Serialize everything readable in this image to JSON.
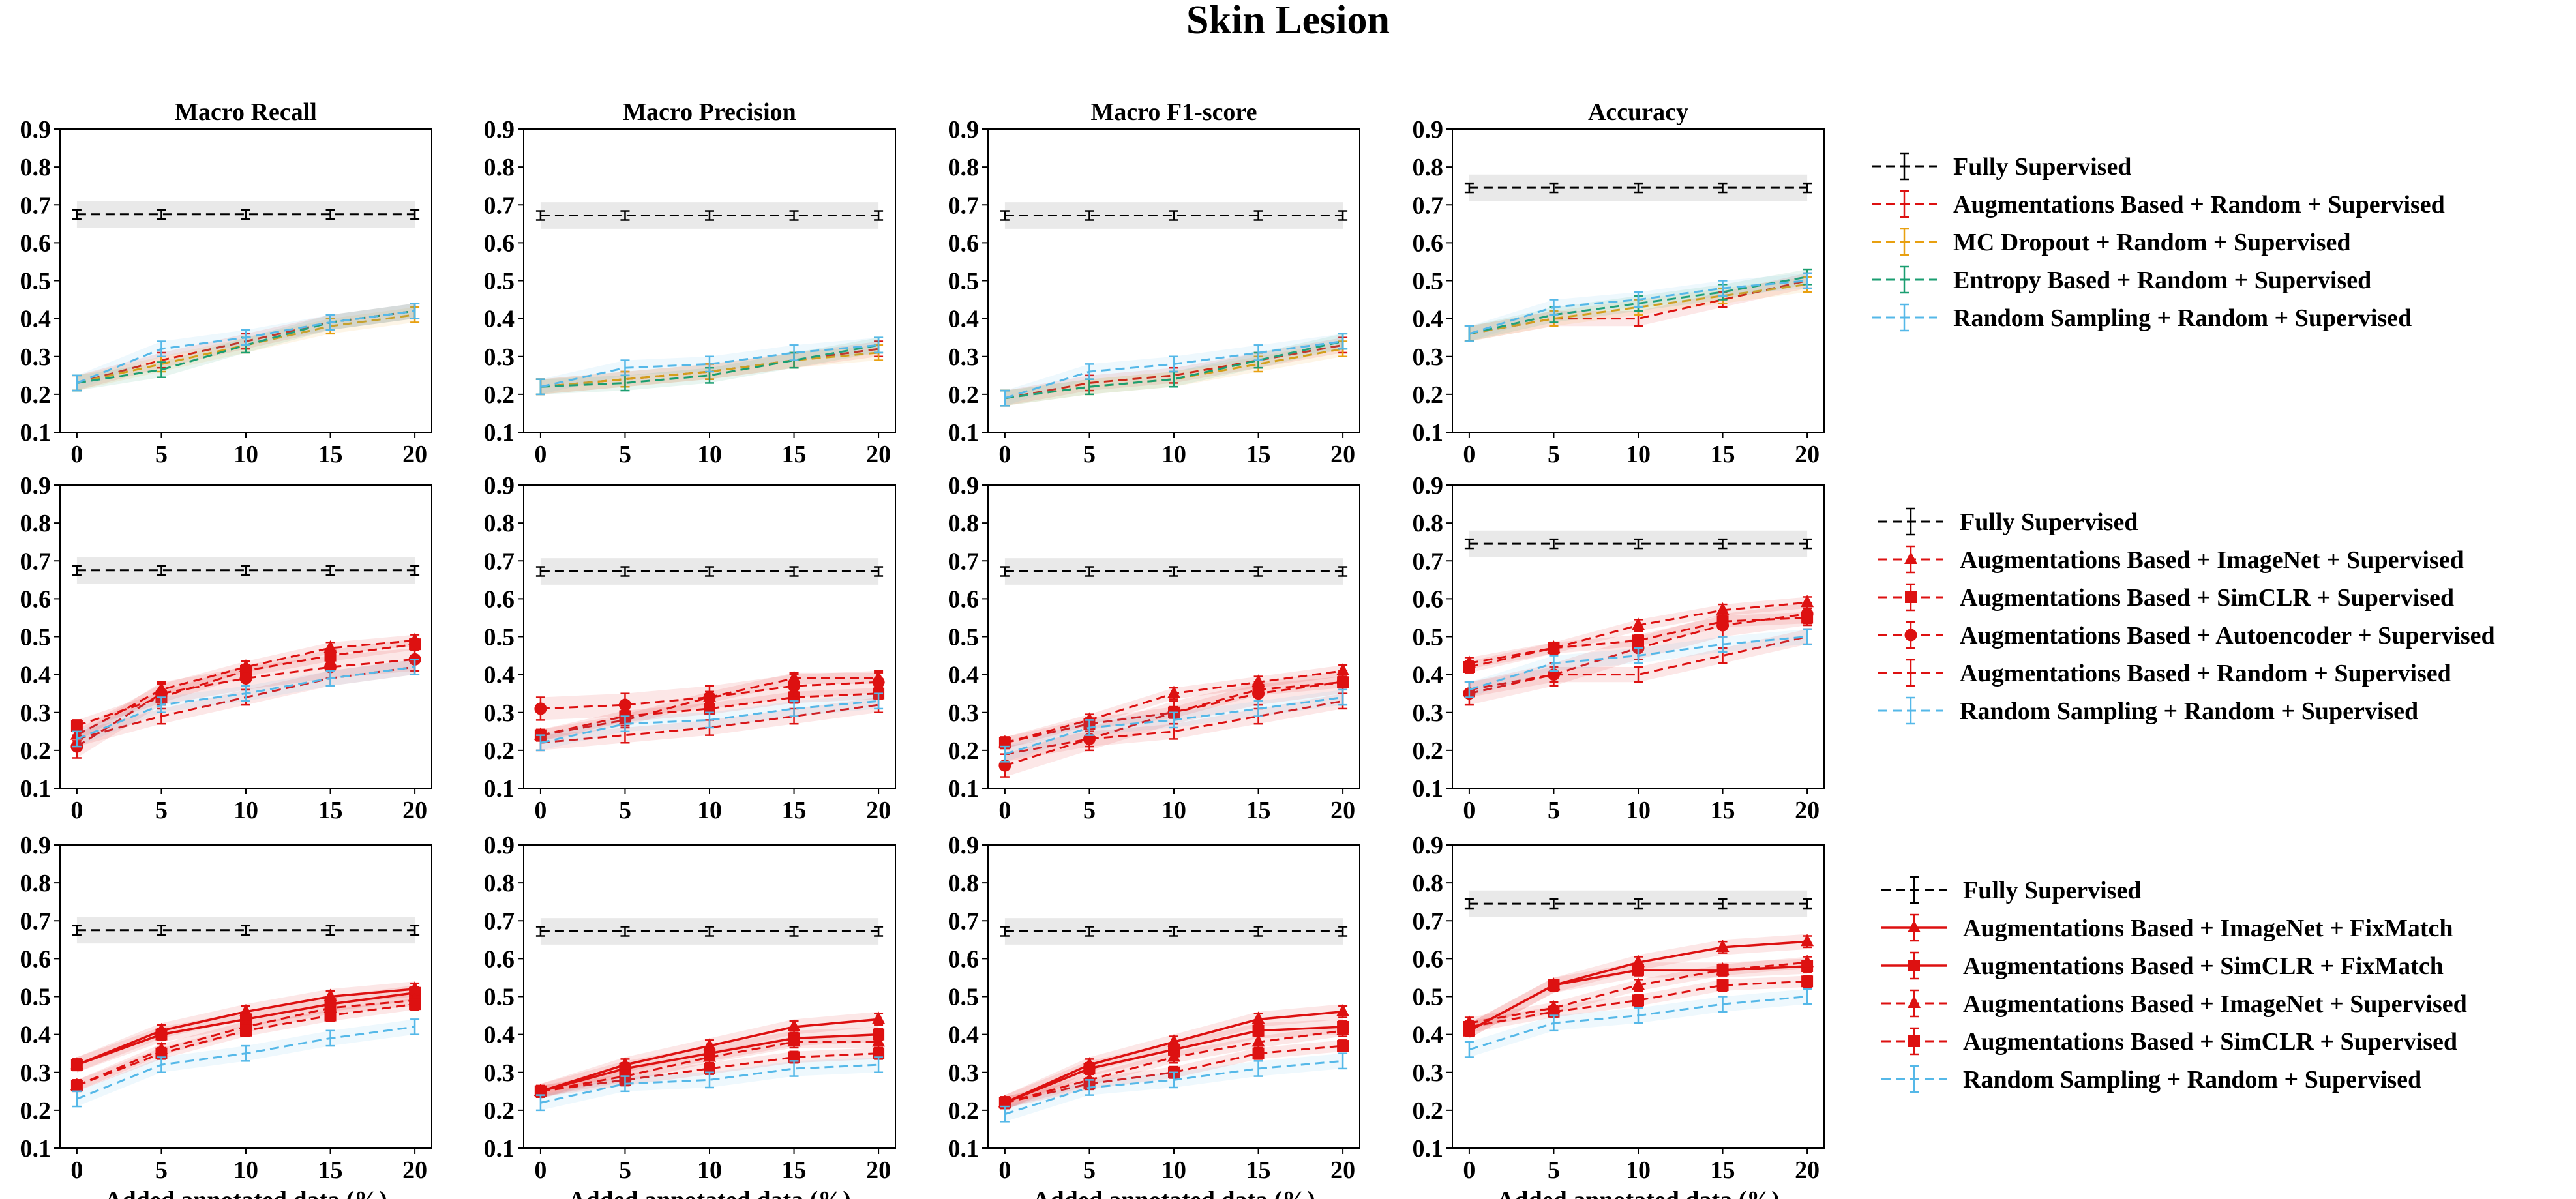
{
  "figure": {
    "title": "Skin Lesion",
    "panel_titles": [
      "Macro Recall",
      "Macro Precision",
      "Macro F1-score",
      "Accuracy"
    ],
    "xlabel": "Added annotated data (%)",
    "x": [
      0,
      5,
      10,
      15,
      20
    ],
    "ylim": [
      0.1,
      0.9
    ],
    "yticks": [
      "0.1",
      "0.2",
      "0.3",
      "0.4",
      "0.5",
      "0.6",
      "0.7",
      "0.8",
      "0.9"
    ],
    "xticks": [
      "0",
      "5",
      "10",
      "15",
      "20"
    ],
    "colors": {
      "fully": "#000000",
      "red": "#dd1111",
      "orange": "#e8a010",
      "green": "#1a9e70",
      "blue": "#55b8e8"
    }
  },
  "legends": [
    [
      "Fully Supervised",
      "Augmentations Based +  Random + Supervised",
      "MC Dropout +  Random + Supervised",
      "Entropy Based +  Random + Supervised",
      "Random Sampling +  Random + Supervised"
    ],
    [
      "Fully Supervised",
      "Augmentations Based + ImageNet + Supervised",
      "Augmentations Based + SimCLR + Supervised",
      "Augmentations Based + Autoencoder + Supervised",
      "Augmentations Based +  Random + Supervised",
      "Random Sampling +  Random + Supervised"
    ],
    [
      "Fully Supervised",
      "Augmentations Based + ImageNet + FixMatch",
      "Augmentations Based + SimCLR + FixMatch",
      "Augmentations Based + ImageNet + Supervised",
      "Augmentations Based + SimCLR + Supervised",
      "Random Sampling +  Random + Supervised"
    ]
  ],
  "chart_data": [
    {
      "type": "line",
      "row": 0,
      "col": 0,
      "title": "Macro Recall",
      "series": [
        {
          "key": "fully",
          "values": [
            0.675,
            0.675,
            0.675,
            0.675,
            0.675
          ]
        },
        {
          "key": "aug_random",
          "values": [
            0.23,
            0.29,
            0.34,
            0.39,
            0.42
          ]
        },
        {
          "key": "mc_random",
          "values": [
            0.23,
            0.28,
            0.33,
            0.38,
            0.41
          ]
        },
        {
          "key": "ent_random",
          "values": [
            0.23,
            0.265,
            0.33,
            0.39,
            0.42
          ]
        },
        {
          "key": "rnd_random",
          "values": [
            0.23,
            0.32,
            0.35,
            0.39,
            0.42
          ]
        }
      ]
    },
    {
      "type": "line",
      "row": 0,
      "col": 1,
      "title": "Macro Precision",
      "series": [
        {
          "key": "fully",
          "values": [
            0.672,
            0.672,
            0.672,
            0.672,
            0.672
          ]
        },
        {
          "key": "aug_random",
          "values": [
            0.22,
            0.24,
            0.26,
            0.29,
            0.32
          ]
        },
        {
          "key": "mc_random",
          "values": [
            0.22,
            0.24,
            0.26,
            0.29,
            0.31
          ]
        },
        {
          "key": "ent_random",
          "values": [
            0.22,
            0.23,
            0.25,
            0.29,
            0.33
          ]
        },
        {
          "key": "rnd_random",
          "values": [
            0.22,
            0.27,
            0.28,
            0.31,
            0.33
          ]
        }
      ]
    },
    {
      "type": "line",
      "row": 0,
      "col": 2,
      "title": "Macro F1-score",
      "series": [
        {
          "key": "fully",
          "values": [
            0.672,
            0.672,
            0.672,
            0.672,
            0.672
          ]
        },
        {
          "key": "aug_random",
          "values": [
            0.19,
            0.23,
            0.25,
            0.29,
            0.33
          ]
        },
        {
          "key": "mc_random",
          "values": [
            0.19,
            0.22,
            0.24,
            0.28,
            0.32
          ]
        },
        {
          "key": "ent_random",
          "values": [
            0.19,
            0.22,
            0.24,
            0.29,
            0.34
          ]
        },
        {
          "key": "rnd_random",
          "values": [
            0.19,
            0.26,
            0.28,
            0.31,
            0.34
          ]
        }
      ]
    },
    {
      "type": "line",
      "row": 0,
      "col": 3,
      "title": "Accuracy",
      "series": [
        {
          "key": "fully",
          "values": [
            0.745,
            0.745,
            0.745,
            0.745,
            0.745
          ]
        },
        {
          "key": "aug_random",
          "values": [
            0.36,
            0.4,
            0.4,
            0.45,
            0.5
          ]
        },
        {
          "key": "mc_random",
          "values": [
            0.36,
            0.4,
            0.43,
            0.46,
            0.49
          ]
        },
        {
          "key": "ent_random",
          "values": [
            0.36,
            0.41,
            0.44,
            0.47,
            0.51
          ]
        },
        {
          "key": "rnd_random",
          "values": [
            0.36,
            0.43,
            0.45,
            0.48,
            0.5
          ]
        }
      ]
    },
    {
      "type": "line",
      "row": 1,
      "col": 0,
      "title": "",
      "series": [
        {
          "key": "fully",
          "values": [
            0.675,
            0.675,
            0.675,
            0.675,
            0.675
          ]
        },
        {
          "key": "aug_imagenet_sup",
          "values": [
            0.24,
            0.36,
            0.42,
            0.47,
            0.49
          ]
        },
        {
          "key": "aug_simclr_sup",
          "values": [
            0.265,
            0.34,
            0.41,
            0.45,
            0.48
          ]
        },
        {
          "key": "aug_ae_sup",
          "values": [
            0.21,
            0.35,
            0.39,
            0.42,
            0.44
          ]
        },
        {
          "key": "aug_random",
          "values": [
            0.23,
            0.29,
            0.34,
            0.39,
            0.42
          ]
        },
        {
          "key": "rnd_random",
          "values": [
            0.23,
            0.32,
            0.35,
            0.39,
            0.42
          ]
        }
      ]
    },
    {
      "type": "line",
      "row": 1,
      "col": 1,
      "title": "",
      "series": [
        {
          "key": "fully",
          "values": [
            0.672,
            0.672,
            0.672,
            0.672,
            0.672
          ]
        },
        {
          "key": "aug_imagenet_sup",
          "values": [
            0.24,
            0.28,
            0.34,
            0.39,
            0.39
          ]
        },
        {
          "key": "aug_simclr_sup",
          "values": [
            0.24,
            0.29,
            0.31,
            0.34,
            0.35
          ]
        },
        {
          "key": "aug_ae_sup",
          "values": [
            0.31,
            0.32,
            0.34,
            0.37,
            0.38
          ]
        },
        {
          "key": "aug_random",
          "values": [
            0.22,
            0.24,
            0.26,
            0.29,
            0.32
          ]
        },
        {
          "key": "rnd_random",
          "values": [
            0.22,
            0.27,
            0.28,
            0.31,
            0.33
          ]
        }
      ]
    },
    {
      "type": "line",
      "row": 1,
      "col": 2,
      "title": "",
      "series": [
        {
          "key": "fully",
          "values": [
            0.672,
            0.672,
            0.672,
            0.672,
            0.672
          ]
        },
        {
          "key": "aug_imagenet_sup",
          "values": [
            0.22,
            0.28,
            0.35,
            0.38,
            0.41
          ]
        },
        {
          "key": "aug_simclr_sup",
          "values": [
            0.22,
            0.27,
            0.3,
            0.36,
            0.38
          ]
        },
        {
          "key": "aug_ae_sup",
          "values": [
            0.16,
            0.23,
            0.3,
            0.35,
            0.38
          ]
        },
        {
          "key": "aug_random",
          "values": [
            0.19,
            0.23,
            0.25,
            0.29,
            0.33
          ]
        },
        {
          "key": "rnd_random",
          "values": [
            0.19,
            0.26,
            0.28,
            0.31,
            0.34
          ]
        }
      ]
    },
    {
      "type": "line",
      "row": 1,
      "col": 3,
      "title": "",
      "series": [
        {
          "key": "fully",
          "values": [
            0.745,
            0.745,
            0.745,
            0.745,
            0.745
          ]
        },
        {
          "key": "aug_imagenet_sup",
          "values": [
            0.43,
            0.47,
            0.53,
            0.57,
            0.59
          ]
        },
        {
          "key": "aug_simclr_sup",
          "values": [
            0.42,
            0.47,
            0.49,
            0.54,
            0.55
          ]
        },
        {
          "key": "aug_ae_sup",
          "values": [
            0.35,
            0.4,
            0.47,
            0.53,
            0.56
          ]
        },
        {
          "key": "aug_random",
          "values": [
            0.36,
            0.4,
            0.4,
            0.45,
            0.5
          ]
        },
        {
          "key": "rnd_random",
          "values": [
            0.36,
            0.43,
            0.45,
            0.48,
            0.5
          ]
        }
      ]
    },
    {
      "type": "line",
      "row": 2,
      "col": 0,
      "title": "",
      "series": [
        {
          "key": "fully",
          "values": [
            0.675,
            0.675,
            0.675,
            0.675,
            0.675
          ]
        },
        {
          "key": "aug_imagenet_fix",
          "values": [
            0.32,
            0.41,
            0.46,
            0.5,
            0.52
          ]
        },
        {
          "key": "aug_simclr_fix",
          "values": [
            0.32,
            0.4,
            0.44,
            0.48,
            0.51
          ]
        },
        {
          "key": "aug_imagenet_sup",
          "values": [
            0.265,
            0.36,
            0.42,
            0.47,
            0.49
          ]
        },
        {
          "key": "aug_simclr_sup",
          "values": [
            0.265,
            0.35,
            0.41,
            0.45,
            0.48
          ]
        },
        {
          "key": "rnd_random",
          "values": [
            0.23,
            0.32,
            0.35,
            0.39,
            0.42
          ]
        }
      ]
    },
    {
      "type": "line",
      "row": 2,
      "col": 1,
      "title": "",
      "series": [
        {
          "key": "fully",
          "values": [
            0.672,
            0.672,
            0.672,
            0.672,
            0.672
          ]
        },
        {
          "key": "aug_imagenet_fix",
          "values": [
            0.25,
            0.32,
            0.37,
            0.42,
            0.44
          ]
        },
        {
          "key": "aug_simclr_fix",
          "values": [
            0.25,
            0.31,
            0.35,
            0.39,
            0.4
          ]
        },
        {
          "key": "aug_imagenet_sup",
          "values": [
            0.25,
            0.29,
            0.34,
            0.38,
            0.38
          ]
        },
        {
          "key": "aug_simclr_sup",
          "values": [
            0.25,
            0.28,
            0.31,
            0.34,
            0.35
          ]
        },
        {
          "key": "rnd_random",
          "values": [
            0.22,
            0.27,
            0.28,
            0.31,
            0.32
          ]
        }
      ]
    },
    {
      "type": "line",
      "row": 2,
      "col": 2,
      "title": "",
      "series": [
        {
          "key": "fully",
          "values": [
            0.672,
            0.672,
            0.672,
            0.672,
            0.672
          ]
        },
        {
          "key": "aug_imagenet_fix",
          "values": [
            0.22,
            0.32,
            0.38,
            0.44,
            0.46
          ]
        },
        {
          "key": "aug_simclr_fix",
          "values": [
            0.22,
            0.31,
            0.36,
            0.41,
            0.42
          ]
        },
        {
          "key": "aug_imagenet_sup",
          "values": [
            0.22,
            0.28,
            0.34,
            0.38,
            0.41
          ]
        },
        {
          "key": "aug_simclr_sup",
          "values": [
            0.22,
            0.27,
            0.3,
            0.35,
            0.37
          ]
        },
        {
          "key": "rnd_random",
          "values": [
            0.19,
            0.26,
            0.28,
            0.31,
            0.33
          ]
        }
      ]
    },
    {
      "type": "line",
      "row": 2,
      "col": 3,
      "title": "",
      "series": [
        {
          "key": "fully",
          "values": [
            0.745,
            0.745,
            0.745,
            0.745,
            0.745
          ]
        },
        {
          "key": "aug_imagenet_fix",
          "values": [
            0.41,
            0.53,
            0.59,
            0.63,
            0.645
          ]
        },
        {
          "key": "aug_simclr_fix",
          "values": [
            0.41,
            0.53,
            0.57,
            0.57,
            0.58
          ]
        },
        {
          "key": "aug_imagenet_sup",
          "values": [
            0.43,
            0.47,
            0.53,
            0.57,
            0.59
          ]
        },
        {
          "key": "aug_simclr_sup",
          "values": [
            0.42,
            0.46,
            0.49,
            0.53,
            0.54
          ]
        },
        {
          "key": "rnd_random",
          "values": [
            0.36,
            0.43,
            0.45,
            0.48,
            0.5
          ]
        }
      ]
    }
  ]
}
